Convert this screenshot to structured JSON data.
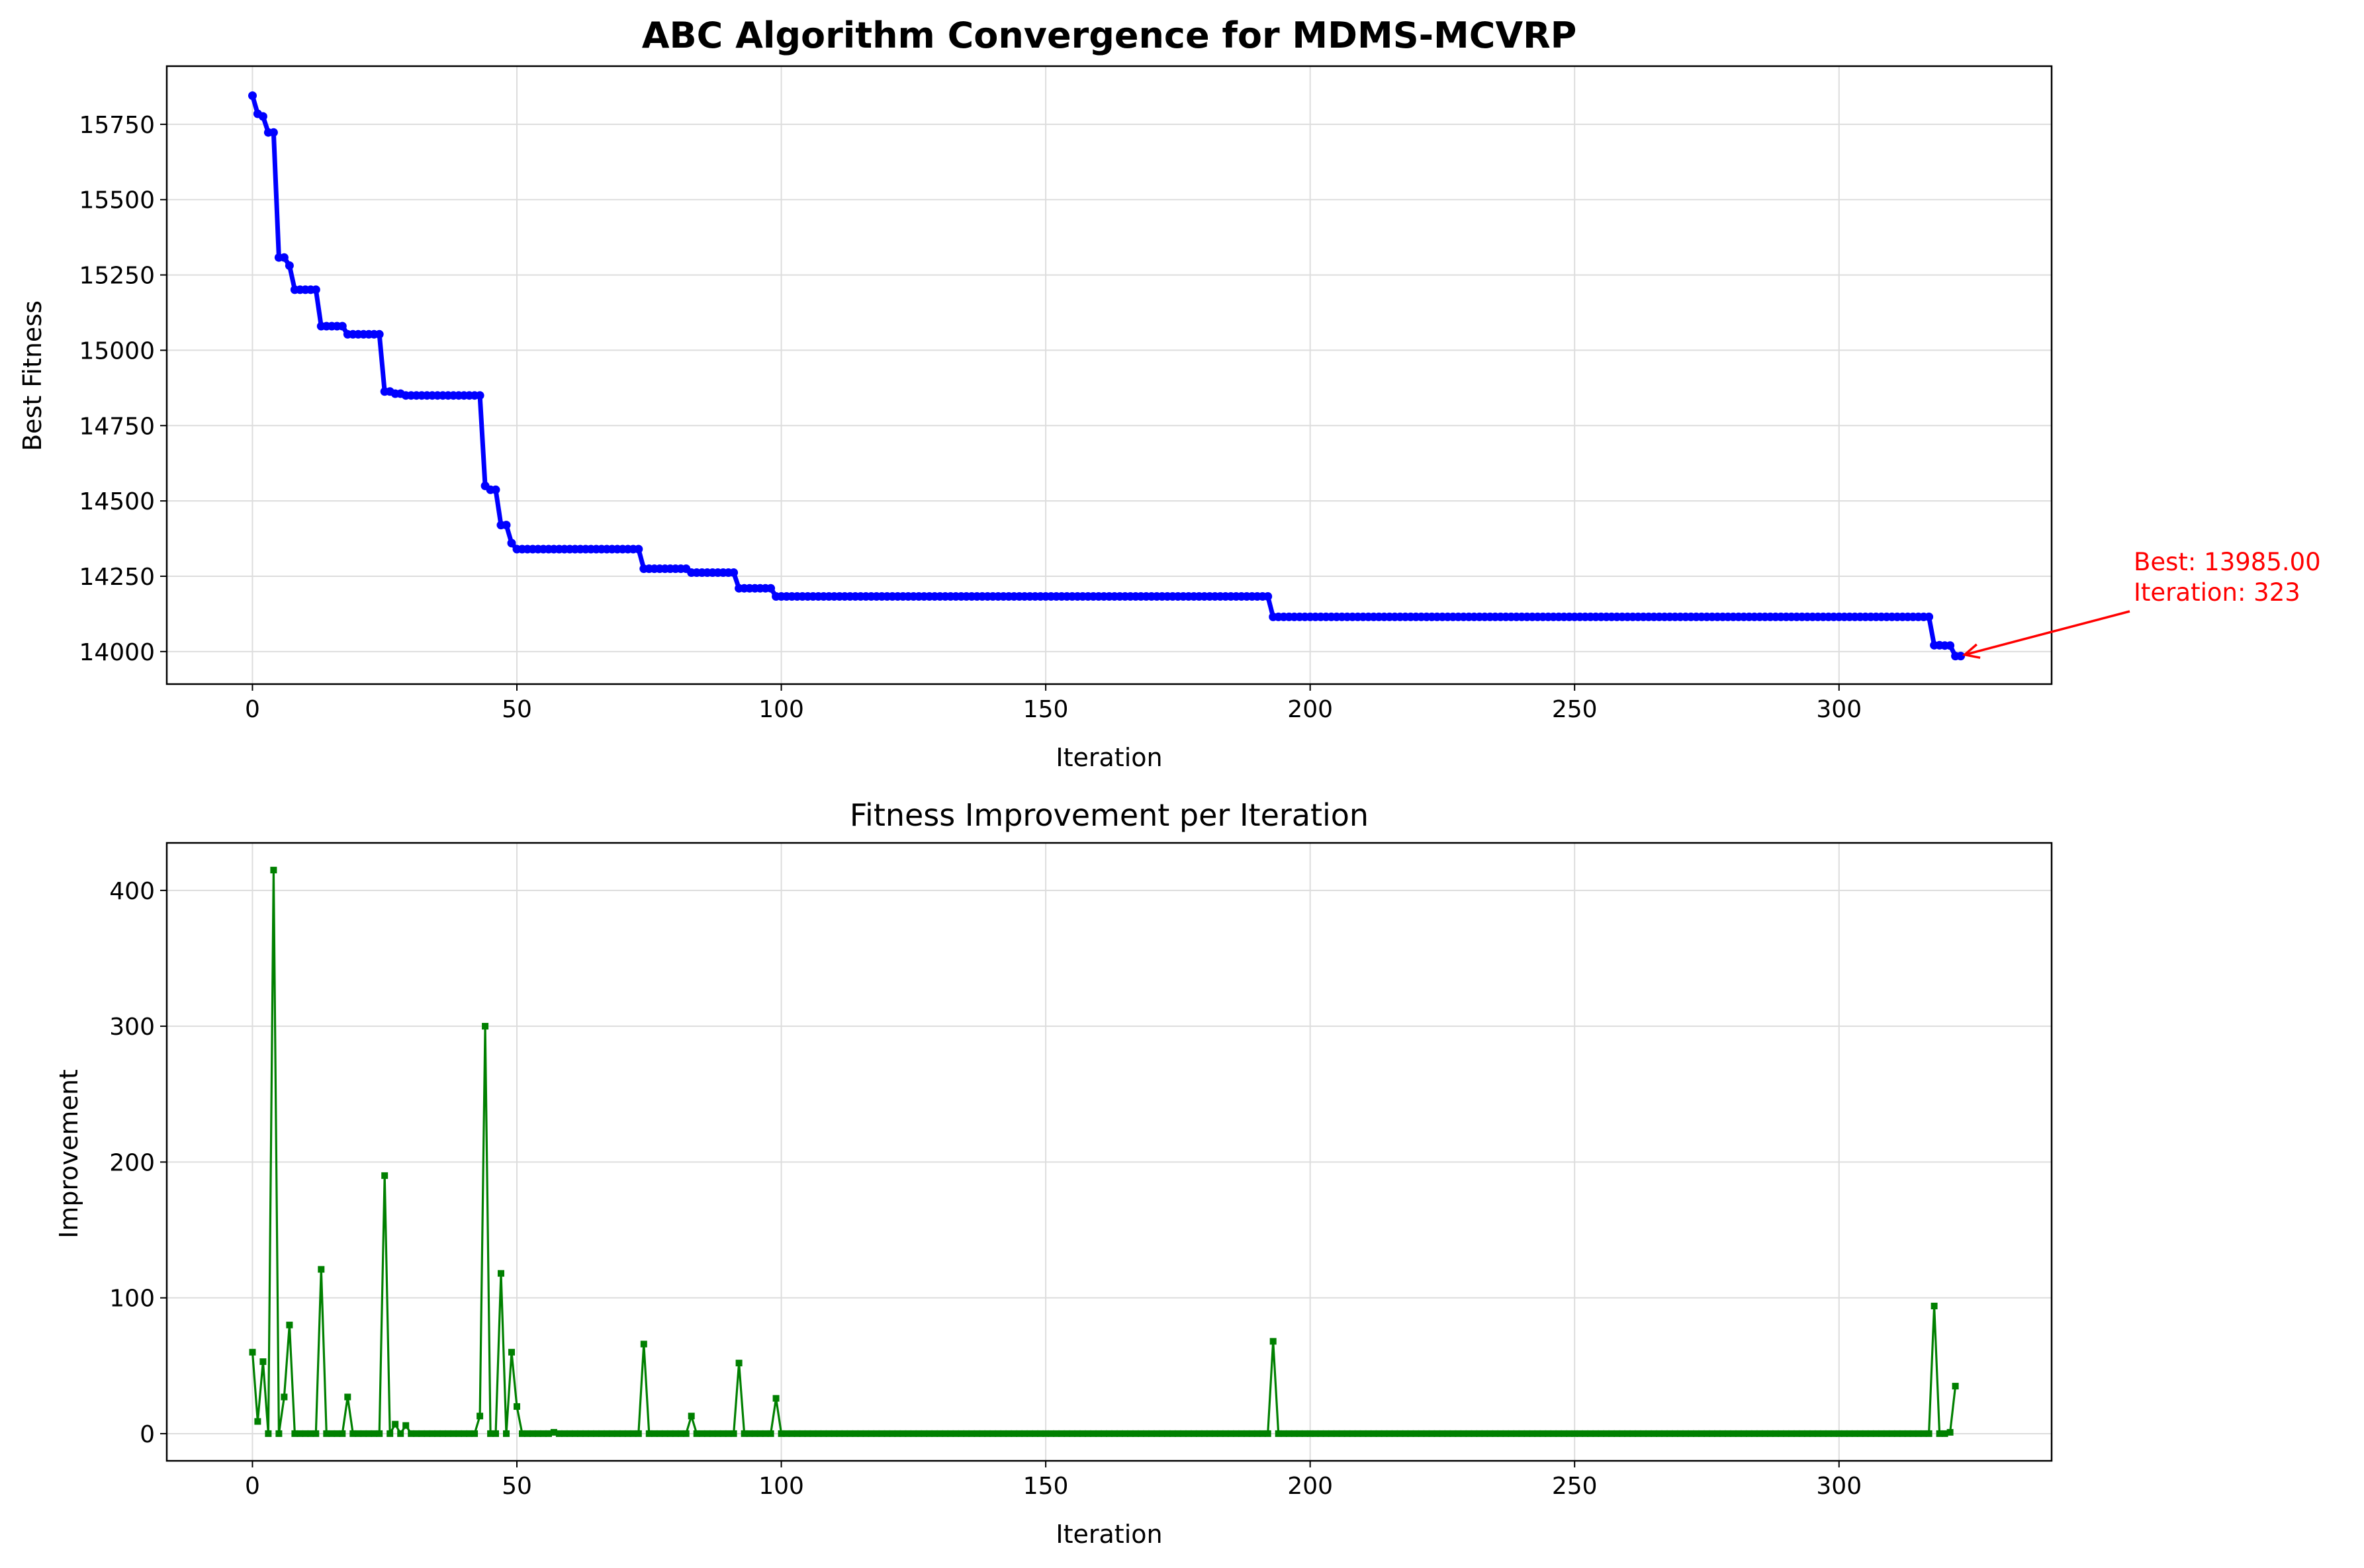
{
  "figure": {
    "background": "#ffffff",
    "grid_color": "#dddddd"
  },
  "chart_data": [
    {
      "type": "line",
      "title": "ABC Algorithm Convergence for MDMS-MCVRP",
      "xlabel": "Iteration",
      "ylabel": "Best Fitness",
      "xlim": [
        -16.2,
        340.2
      ],
      "ylim": [
        13892,
        15943
      ],
      "xticks": [
        0,
        50,
        100,
        150,
        200,
        250,
        300
      ],
      "yticks": [
        14000,
        14250,
        14500,
        14750,
        15000,
        15250,
        15500,
        15750
      ],
      "grid": true,
      "legend": "none",
      "series": [
        {
          "color": "#0000ff",
          "marker": "circle",
          "x_range": [
            0,
            323
          ],
          "steps": [
            [
              0,
              15845
            ],
            [
              1,
              15785
            ],
            [
              2,
              15776
            ],
            [
              3,
              15723
            ],
            [
              4,
              15723
            ],
            [
              5,
              15308
            ],
            [
              6,
              15308
            ],
            [
              7,
              15281
            ],
            [
              8,
              15201
            ],
            [
              13,
              15080
            ],
            [
              18,
              15053
            ],
            [
              25,
              14863
            ],
            [
              27,
              14856
            ],
            [
              29,
              14850
            ],
            [
              44,
              14550
            ],
            [
              45,
              14537
            ],
            [
              47,
              14420
            ],
            [
              49,
              14360
            ],
            [
              50,
              14340
            ],
            [
              74,
              14275
            ],
            [
              83,
              14262
            ],
            [
              92,
              14210
            ],
            [
              99,
              14183
            ],
            [
              193,
              14115
            ],
            [
              318,
              14021
            ],
            [
              320,
              14020
            ],
            [
              322,
              13985
            ]
          ]
        }
      ],
      "annotation": {
        "lines": [
          "Best: 13985.00",
          "Iteration: 323"
        ],
        "point": [
          323,
          13985
        ],
        "color": "#ff0000"
      }
    },
    {
      "type": "line",
      "title": "Fitness Improvement per Iteration",
      "xlabel": "Iteration",
      "ylabel": "Improvement",
      "xlim": [
        -16.2,
        340.2
      ],
      "ylim": [
        -20,
        435
      ],
      "xticks": [
        0,
        50,
        100,
        150,
        200,
        250,
        300
      ],
      "yticks": [
        0,
        100,
        200,
        300,
        400
      ],
      "grid": true,
      "legend": "none",
      "series": [
        {
          "color": "#008000",
          "marker": "square",
          "x_range": [
            0,
            322
          ],
          "default_value": 0,
          "points": [
            [
              0,
              60
            ],
            [
              1,
              9
            ],
            [
              2,
              53
            ],
            [
              3,
              0
            ],
            [
              4,
              415
            ],
            [
              5,
              0
            ],
            [
              6,
              27
            ],
            [
              7,
              80
            ],
            [
              13,
              121
            ],
            [
              18,
              27
            ],
            [
              25,
              190
            ],
            [
              27,
              7
            ],
            [
              29,
              6
            ],
            [
              43,
              13
            ],
            [
              44,
              300
            ],
            [
              47,
              118
            ],
            [
              49,
              60
            ],
            [
              50,
              20
            ],
            [
              57,
              1
            ],
            [
              74,
              66
            ],
            [
              83,
              13
            ],
            [
              92,
              52
            ],
            [
              99,
              26
            ],
            [
              193,
              68
            ],
            [
              318,
              94
            ],
            [
              321,
              1
            ],
            [
              322,
              35
            ]
          ]
        }
      ]
    }
  ]
}
